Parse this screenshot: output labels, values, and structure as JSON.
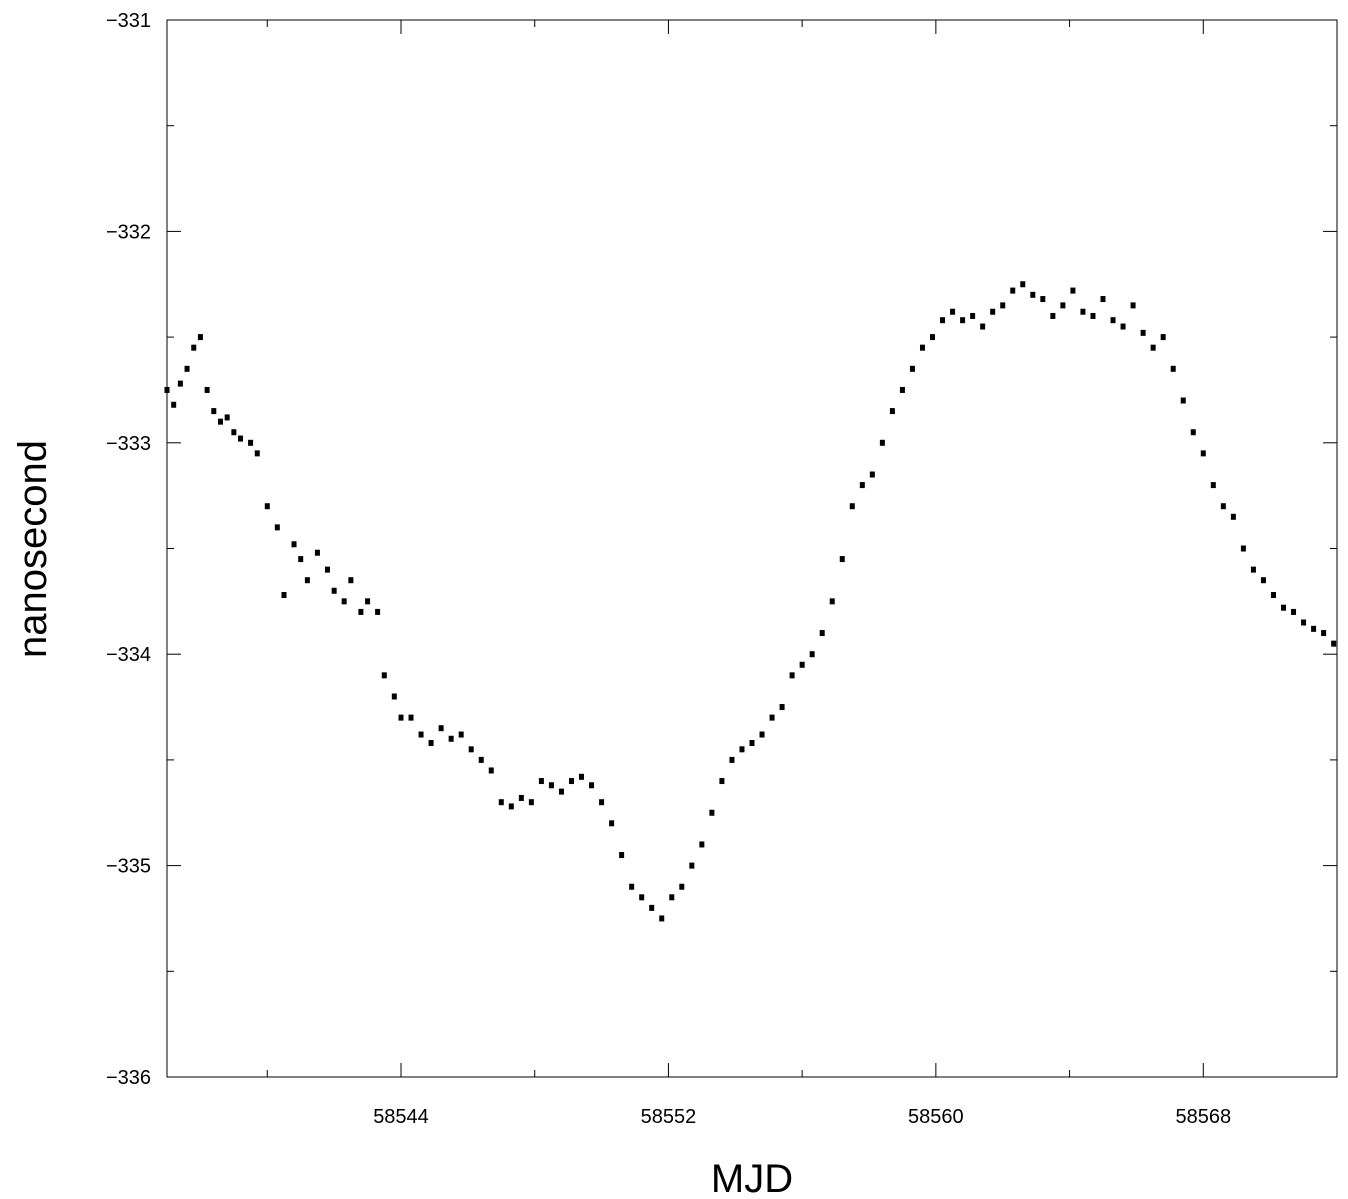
{
  "chart_data": {
    "type": "scatter",
    "title": "",
    "xlabel": "MJD",
    "ylabel": "nanosecond",
    "xlim": [
      58537,
      58572
    ],
    "ylim": [
      -336,
      -331
    ],
    "x_ticks": [
      58544,
      58552,
      58560,
      58568
    ],
    "x_tick_labels": [
      "58544",
      "58552",
      "58560",
      "58568"
    ],
    "y_ticks": [
      -336,
      -335,
      -334,
      -333,
      -332,
      -331
    ],
    "y_tick_labels": [
      "−336",
      "−335",
      "−334",
      "−333",
      "−332",
      "−331"
    ],
    "grid": false,
    "legend": "none",
    "marker_color": "#000000",
    "series": [
      {
        "x": [
          58537.0,
          58537.2,
          58537.4,
          58537.6,
          58537.8,
          58538.0,
          58538.2,
          58538.4,
          58538.6,
          58538.8,
          58539.0,
          58539.2,
          58539.5,
          58539.7,
          58540.0,
          58540.3,
          58540.5,
          58540.8,
          58541.0,
          58541.2,
          58541.5,
          58541.8,
          58542.0,
          58542.3,
          58542.5,
          58542.8,
          58543.0,
          58543.3,
          58543.5,
          58543.8,
          58544.0,
          58544.3,
          58544.6,
          58544.9,
          58545.2,
          58545.5,
          58545.8,
          58546.1,
          58546.4,
          58546.7,
          58547.0,
          58547.3,
          58547.6,
          58547.9,
          58548.2,
          58548.5,
          58548.8,
          58549.1,
          58549.4,
          58549.7,
          58550.0,
          58550.3,
          58550.6,
          58550.9,
          58551.2,
          58551.5,
          58551.8,
          58552.1,
          58552.4,
          58552.7,
          58553.0,
          58553.3,
          58553.6,
          58553.9,
          58554.2,
          58554.5,
          58554.8,
          58555.1,
          58555.4,
          58555.7,
          58556.0,
          58556.3,
          58556.6,
          58556.9,
          58557.2,
          58557.5,
          58557.8,
          58558.1,
          58558.4,
          58558.7,
          58559.0,
          58559.3,
          58559.6,
          58559.9,
          58560.2,
          58560.5,
          58560.8,
          58561.1,
          58561.4,
          58561.7,
          58562.0,
          58562.3,
          58562.6,
          58562.9,
          58563.2,
          58563.5,
          58563.8,
          58564.1,
          58564.4,
          58564.7,
          58565.0,
          58565.3,
          58565.6,
          58565.9,
          58566.2,
          58566.5,
          58566.8,
          58567.1,
          58567.4,
          58567.7,
          58568.0,
          58568.3,
          58568.6,
          58568.9,
          58569.2,
          58569.5,
          58569.8,
          58570.1,
          58570.4,
          58570.7,
          58571.0,
          58571.3,
          58571.6,
          58571.9
        ],
        "y": [
          -332.75,
          -332.82,
          -332.72,
          -332.65,
          -332.55,
          -332.5,
          -332.75,
          -332.85,
          -332.9,
          -332.88,
          -332.95,
          -332.98,
          -333.0,
          -333.05,
          -333.3,
          -333.4,
          -333.72,
          -333.48,
          -333.55,
          -333.65,
          -333.52,
          -333.6,
          -333.7,
          -333.75,
          -333.65,
          -333.8,
          -333.75,
          -333.8,
          -334.1,
          -334.2,
          -334.3,
          -334.3,
          -334.38,
          -334.42,
          -334.35,
          -334.4,
          -334.38,
          -334.45,
          -334.5,
          -334.55,
          -334.7,
          -334.72,
          -334.68,
          -334.7,
          -334.6,
          -334.62,
          -334.65,
          -334.6,
          -334.58,
          -334.62,
          -334.7,
          -334.8,
          -334.95,
          -335.1,
          -335.15,
          -335.2,
          -335.25,
          -335.15,
          -335.1,
          -335.0,
          -334.9,
          -334.75,
          -334.6,
          -334.5,
          -334.45,
          -334.42,
          -334.38,
          -334.3,
          -334.25,
          -334.1,
          -334.05,
          -334.0,
          -333.9,
          -333.75,
          -333.55,
          -333.3,
          -333.2,
          -333.15,
          -333.0,
          -332.85,
          -332.75,
          -332.65,
          -332.55,
          -332.5,
          -332.42,
          -332.38,
          -332.42,
          -332.4,
          -332.45,
          -332.38,
          -332.35,
          -332.28,
          -332.25,
          -332.3,
          -332.32,
          -332.4,
          -332.35,
          -332.28,
          -332.38,
          -332.4,
          -332.32,
          -332.42,
          -332.45,
          -332.35,
          -332.48,
          -332.55,
          -332.5,
          -332.65,
          -332.8,
          -332.95,
          -333.05,
          -333.2,
          -333.3,
          -333.35,
          -333.5,
          -333.6,
          -333.65,
          -333.72,
          -333.78,
          -333.8,
          -333.85,
          -333.88,
          -333.9,
          -333.95
        ]
      }
    ]
  }
}
